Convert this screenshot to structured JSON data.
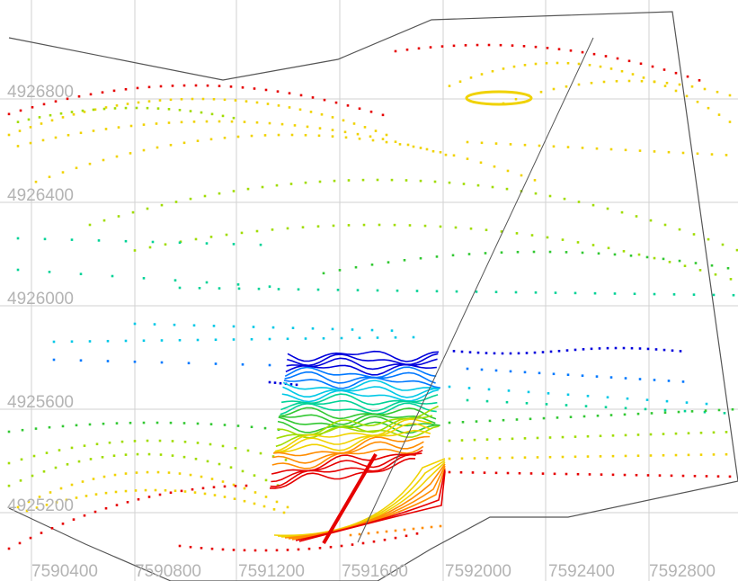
{
  "axes": {
    "x_ticks": [
      "7590400",
      "7590800",
      "7591200",
      "7591600",
      "7592000",
      "7592400",
      "7592800"
    ],
    "y_ticks": [
      "4926800",
      "4926400",
      "4926000",
      "4925600",
      "4925200"
    ]
  },
  "colors": {
    "grid": "#d2d2d2",
    "boundary": "#555555",
    "labels": "#b4b4b4",
    "contour_ramp": [
      "#0000dc",
      "#0078ff",
      "#00c8e6",
      "#00d296",
      "#32c832",
      "#a0dc00",
      "#f0d200",
      "#ff8c00",
      "#e60000"
    ]
  },
  "layers": [
    "grid",
    "survey-boundary",
    "elevation-point-lines",
    "contour-lines",
    "ridge-line"
  ]
}
